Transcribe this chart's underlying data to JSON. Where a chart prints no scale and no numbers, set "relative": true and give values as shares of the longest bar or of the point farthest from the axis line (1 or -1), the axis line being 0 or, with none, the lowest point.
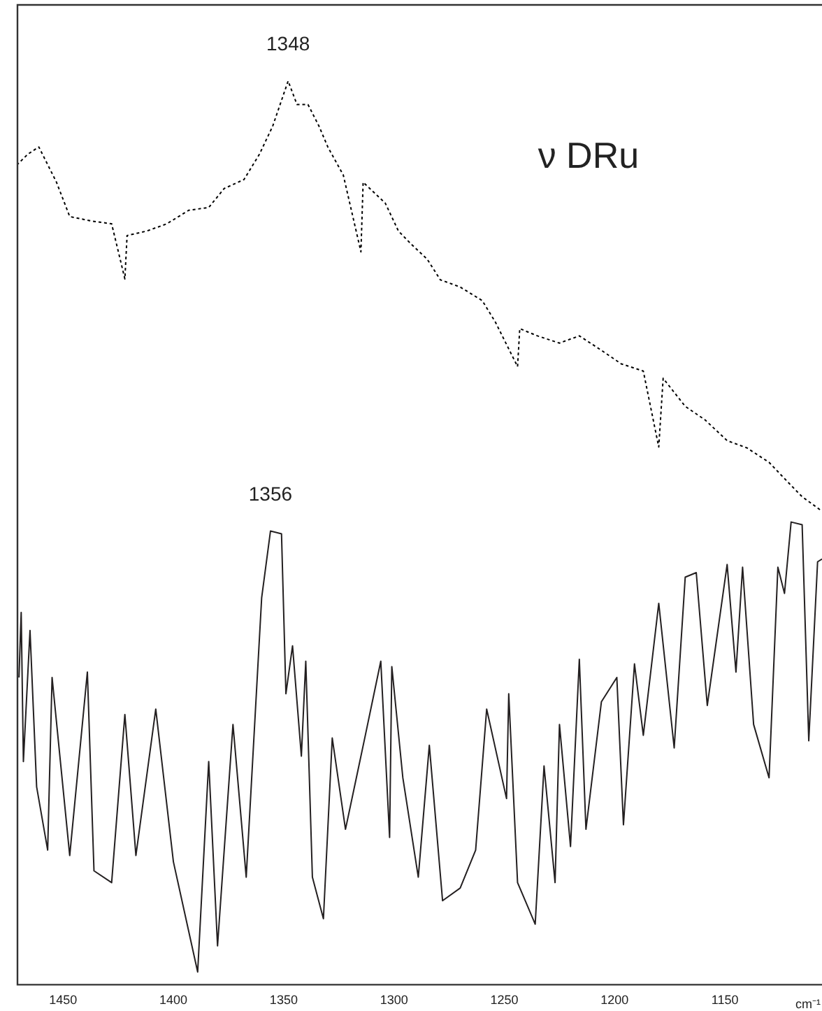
{
  "chart_data": {
    "type": "line",
    "relative": true,
    "xlabel": "cm⁻¹",
    "xlim": [
      1471,
      1106
    ],
    "xticks": [
      1450,
      1400,
      1350,
      1300,
      1250,
      1200,
      1150
    ],
    "tick_labels": "x",
    "marker": "none",
    "annotations": [
      {
        "text": "1348",
        "x": 1348,
        "y": 1
      },
      {
        "text": "1356",
        "x": 1356,
        "y": 0.502
      },
      "ν DRu"
    ],
    "series": [
      {
        "color": "#000000",
        "line_style": "dotted",
        "x": [
          1471,
          1466,
          1461,
          1453,
          1447,
          1437,
          1428,
          1422,
          1421,
          1412,
          1403,
          1393,
          1384,
          1377,
          1368,
          1361,
          1355,
          1348,
          1344,
          1339,
          1334,
          1330,
          1323,
          1315,
          1314,
          1304,
          1298,
          1292,
          1285,
          1279,
          1270,
          1260,
          1254,
          1244,
          1243,
          1235,
          1225,
          1216,
          1206,
          1197,
          1187,
          1180,
          1178,
          1168,
          1159,
          1149,
          1140,
          1130,
          1121,
          1115,
          1106
        ],
        "values": [
          0.907,
          0.919,
          0.927,
          0.888,
          0.85,
          0.845,
          0.842,
          0.781,
          0.829,
          0.834,
          0.842,
          0.857,
          0.86,
          0.881,
          0.891,
          0.919,
          0.95,
          1,
          0.974,
          0.974,
          0.95,
          0.927,
          0.896,
          0.811,
          0.888,
          0.865,
          0.834,
          0.819,
          0.803,
          0.78,
          0.772,
          0.757,
          0.733,
          0.684,
          0.726,
          0.718,
          0.71,
          0.718,
          0.702,
          0.687,
          0.679,
          0.595,
          0.671,
          0.64,
          0.625,
          0.602,
          0.594,
          0.578,
          0.555,
          0.54,
          0.524
        ]
      },
      {
        "color": "#231f20",
        "line_style": "solid",
        "x": [
          1470,
          1469,
          1468,
          1465,
          1462,
          1457,
          1455,
          1447,
          1439,
          1436,
          1428,
          1422,
          1417,
          1408,
          1400,
          1389,
          1384,
          1380,
          1373,
          1367,
          1360,
          1356,
          1351,
          1349,
          1346,
          1342,
          1340,
          1337,
          1332,
          1328,
          1322,
          1313,
          1306,
          1302,
          1301,
          1296,
          1289,
          1284,
          1278,
          1270,
          1263,
          1258,
          1249,
          1248,
          1244,
          1236,
          1232,
          1227,
          1225,
          1220,
          1216,
          1213,
          1206,
          1199,
          1196,
          1191,
          1187,
          1180,
          1173,
          1168,
          1163,
          1158,
          1149,
          1145,
          1142,
          1137,
          1130,
          1126,
          1123,
          1120,
          1115,
          1112,
          1108,
          1106
        ],
        "values": [
          0.34,
          0.412,
          0.247,
          0.392,
          0.219,
          0.149,
          0.34,
          0.143,
          0.346,
          0.126,
          0.113,
          0.299,
          0.143,
          0.305,
          0.136,
          0.014,
          0.247,
          0.043,
          0.288,
          0.119,
          0.428,
          0.502,
          0.499,
          0.322,
          0.375,
          0.253,
          0.358,
          0.119,
          0.073,
          0.273,
          0.172,
          0.276,
          0.358,
          0.163,
          0.352,
          0.229,
          0.119,
          0.265,
          0.093,
          0.107,
          0.149,
          0.305,
          0.206,
          0.322,
          0.113,
          0.067,
          0.242,
          0.113,
          0.288,
          0.153,
          0.36,
          0.172,
          0.313,
          0.34,
          0.177,
          0.355,
          0.276,
          0.422,
          0.262,
          0.451,
          0.456,
          0.309,
          0.465,
          0.346,
          0.462,
          0.288,
          0.229,
          0.462,
          0.433,
          0.512,
          0.509,
          0.27,
          0.468,
          0.471
        ]
      }
    ]
  }
}
